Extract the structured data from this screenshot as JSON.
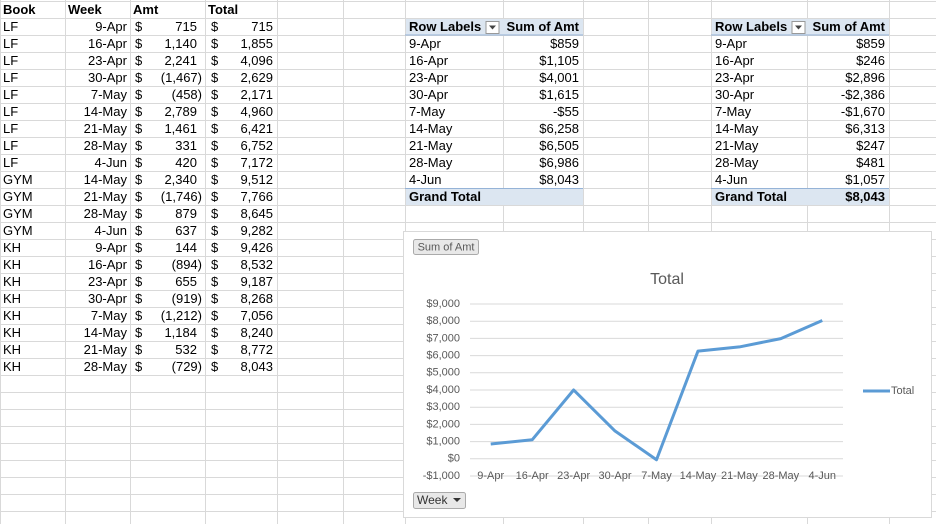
{
  "sheet": {
    "headers": [
      "Book",
      "Week",
      "Amt",
      "Total"
    ],
    "currency": "$",
    "rows": [
      [
        "LF",
        "9-Apr",
        "715",
        "715"
      ],
      [
        "LF",
        "16-Apr",
        "1,140",
        "1,855"
      ],
      [
        "LF",
        "23-Apr",
        "2,241",
        "4,096"
      ],
      [
        "LF",
        "30-Apr",
        "(1,467)",
        "2,629"
      ],
      [
        "LF",
        "7-May",
        "(458)",
        "2,171"
      ],
      [
        "LF",
        "14-May",
        "2,789",
        "4,960"
      ],
      [
        "LF",
        "21-May",
        "1,461",
        "6,421"
      ],
      [
        "LF",
        "28-May",
        "331",
        "6,752"
      ],
      [
        "LF",
        "4-Jun",
        "420",
        "7,172"
      ],
      [
        "GYM",
        "14-May",
        "2,340",
        "9,512"
      ],
      [
        "GYM",
        "21-May",
        "(1,746)",
        "7,766"
      ],
      [
        "GYM",
        "28-May",
        "879",
        "8,645"
      ],
      [
        "GYM",
        "4-Jun",
        "637",
        "9,282"
      ],
      [
        "KH",
        "9-Apr",
        "144",
        "9,426"
      ],
      [
        "KH",
        "16-Apr",
        "(894)",
        "8,532"
      ],
      [
        "KH",
        "23-Apr",
        "655",
        "9,187"
      ],
      [
        "KH",
        "30-Apr",
        "(919)",
        "8,268"
      ],
      [
        "KH",
        "7-May",
        "(1,212)",
        "7,056"
      ],
      [
        "KH",
        "14-May",
        "1,184",
        "8,240"
      ],
      [
        "KH",
        "21-May",
        "532",
        "8,772"
      ],
      [
        "KH",
        "28-May",
        "(729)",
        "8,043"
      ]
    ]
  },
  "pivot_tables": [
    {
      "headers": [
        "Row Labels",
        "Sum of Amt"
      ],
      "rows": [
        [
          "9-Apr",
          "$859"
        ],
        [
          "16-Apr",
          "$1,105"
        ],
        [
          "23-Apr",
          "$4,001"
        ],
        [
          "30-Apr",
          "$1,615"
        ],
        [
          "7-May",
          "-$55"
        ],
        [
          "14-May",
          "$6,258"
        ],
        [
          "21-May",
          "$6,505"
        ],
        [
          "28-May",
          "$6,986"
        ],
        [
          "4-Jun",
          "$8,043"
        ]
      ],
      "grand_total": {
        "label": "Grand Total"
      }
    },
    {
      "headers": [
        "Row Labels",
        "Sum of Amt"
      ],
      "rows": [
        [
          "9-Apr",
          "$859"
        ],
        [
          "16-Apr",
          "$246"
        ],
        [
          "23-Apr",
          "$2,896"
        ],
        [
          "30-Apr",
          "-$2,386"
        ],
        [
          "7-May",
          "-$1,670"
        ],
        [
          "14-May",
          "$6,313"
        ],
        [
          "21-May",
          "$247"
        ],
        [
          "28-May",
          "$481"
        ],
        [
          "4-Jun",
          "$1,057"
        ]
      ],
      "grand_total": {
        "label": "Grand Total",
        "value": "$8,043"
      }
    }
  ],
  "chart_data": {
    "type": "line",
    "title": "Total",
    "value_field_button": "Sum of Amt",
    "axis_field_button": "Week",
    "categories": [
      "9-Apr",
      "16-Apr",
      "23-Apr",
      "30-Apr",
      "7-May",
      "14-May",
      "21-May",
      "28-May",
      "4-Jun"
    ],
    "series": [
      {
        "name": "Total",
        "color": "#5b9bd5",
        "values": [
          859,
          1105,
          4001,
          1615,
          -55,
          6258,
          6505,
          6986,
          8043
        ]
      }
    ],
    "ylim": [
      -1000,
      9000
    ],
    "yticks": [
      {
        "value": -1000,
        "label": "-$1,000"
      },
      {
        "value": 0,
        "label": "$0"
      },
      {
        "value": 1000,
        "label": "$1,000"
      },
      {
        "value": 2000,
        "label": "$2,000"
      },
      {
        "value": 3000,
        "label": "$3,000"
      },
      {
        "value": 4000,
        "label": "$4,000"
      },
      {
        "value": 5000,
        "label": "$5,000"
      },
      {
        "value": 6000,
        "label": "$6,000"
      },
      {
        "value": 7000,
        "label": "$7,000"
      },
      {
        "value": 8000,
        "label": "$8,000"
      },
      {
        "value": 9000,
        "label": "$9,000"
      }
    ],
    "grid": true,
    "legend": "right"
  }
}
